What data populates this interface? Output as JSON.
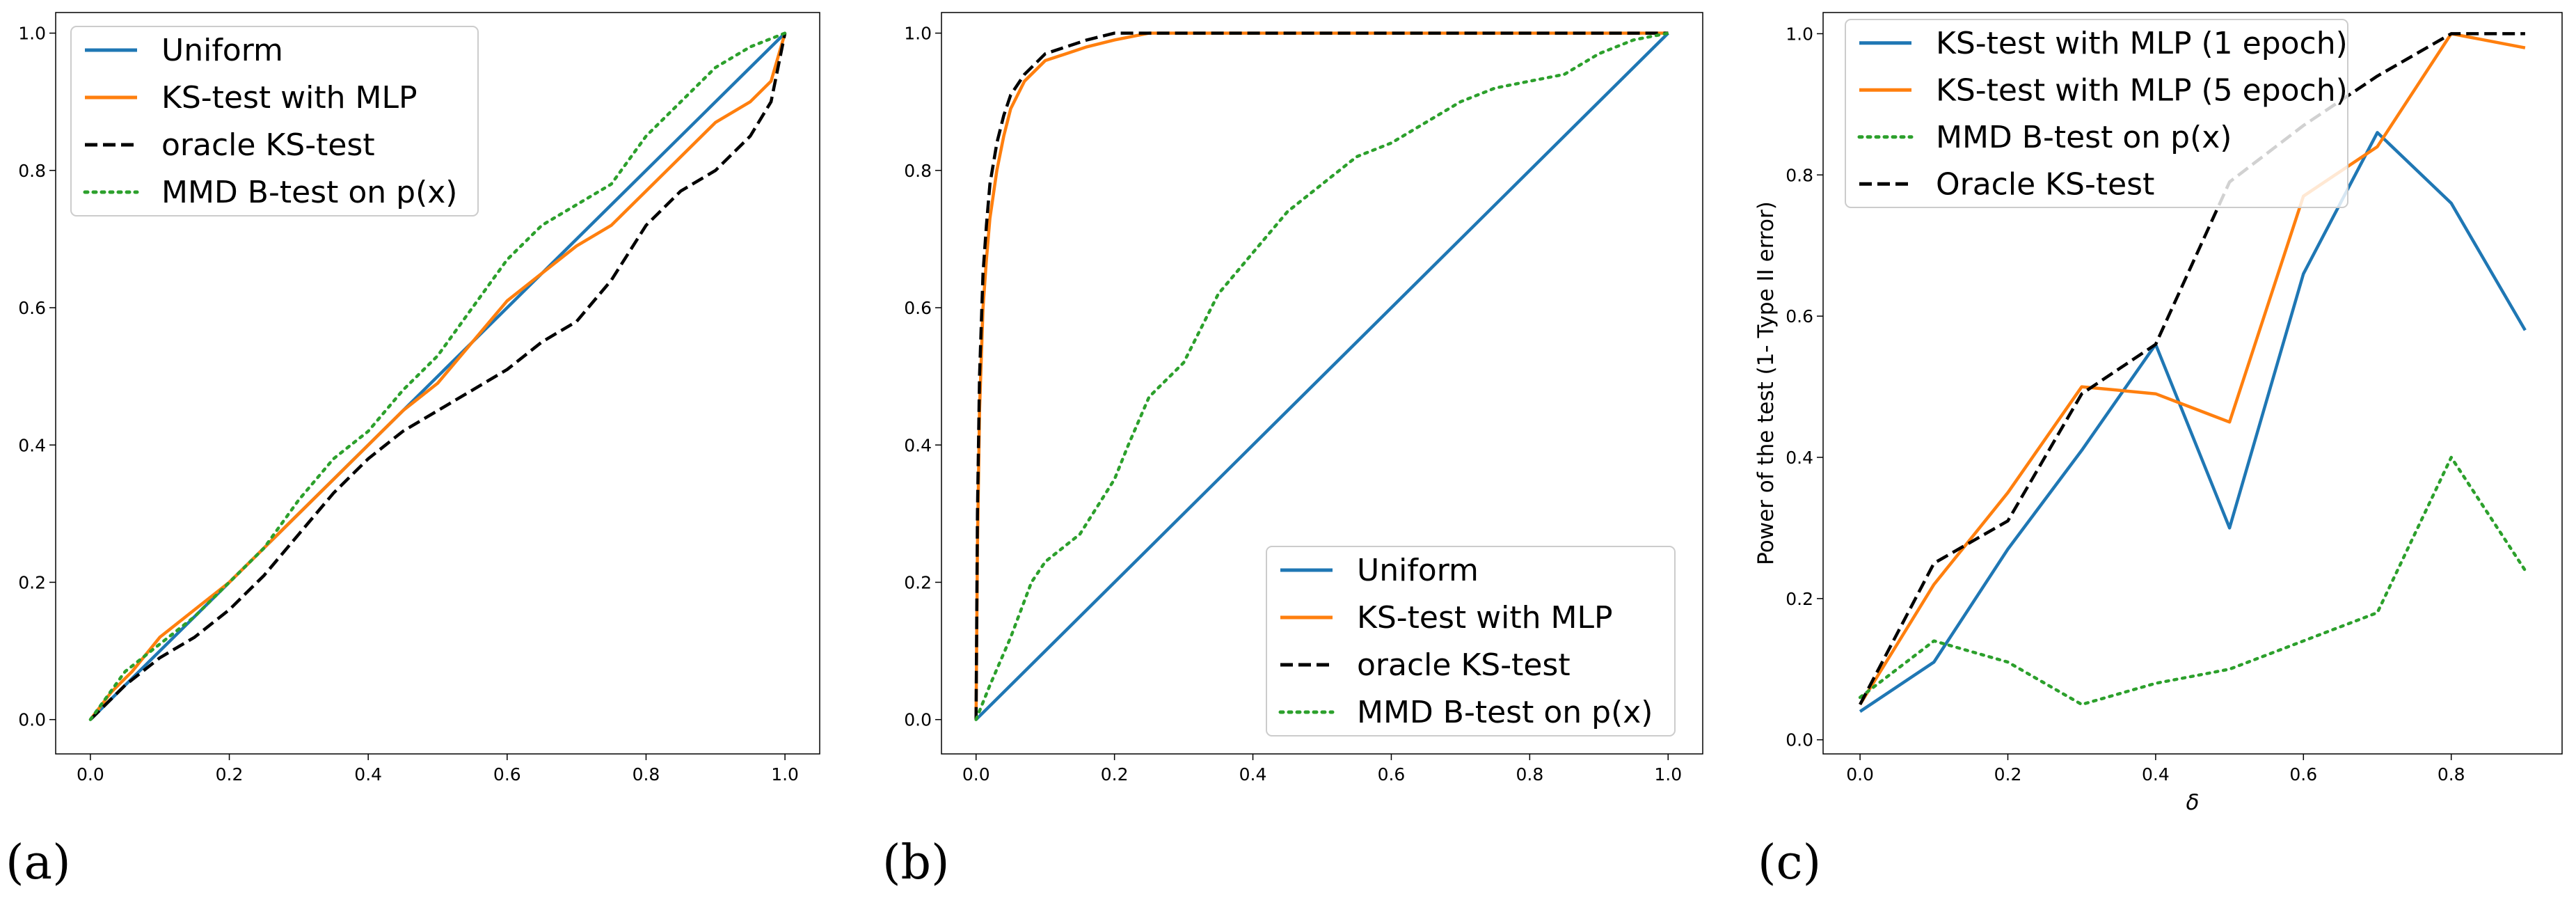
{
  "colors": {
    "blue": "#1f77b4",
    "orange": "#ff7f0e",
    "black": "#000000",
    "green": "#2ca02c"
  },
  "chart_data": [
    {
      "type": "line",
      "panel_label": "(a)",
      "xlim": [
        -0.05,
        1.05
      ],
      "ylim": [
        -0.05,
        1.03
      ],
      "xticks": [
        "0.0",
        "0.2",
        "0.4",
        "0.6",
        "0.8",
        "1.0"
      ],
      "yticks": [
        "0.0",
        "0.2",
        "0.4",
        "0.6",
        "0.8",
        "1.0"
      ],
      "xlabel": "",
      "ylabel": "",
      "legend_position": "upper-left",
      "series": [
        {
          "name": "Uniform",
          "color": "#1f77b4",
          "style": "solid",
          "x": [
            0,
            1
          ],
          "y": [
            0,
            1
          ]
        },
        {
          "name": "KS-test with MLP",
          "color": "#ff7f0e",
          "style": "solid",
          "x": [
            0,
            0.03,
            0.06,
            0.1,
            0.15,
            0.2,
            0.25,
            0.3,
            0.35,
            0.4,
            0.45,
            0.5,
            0.55,
            0.6,
            0.65,
            0.7,
            0.75,
            0.8,
            0.85,
            0.9,
            0.95,
            0.98,
            1.0
          ],
          "y": [
            0,
            0.04,
            0.07,
            0.12,
            0.16,
            0.2,
            0.25,
            0.3,
            0.35,
            0.4,
            0.45,
            0.49,
            0.55,
            0.61,
            0.65,
            0.69,
            0.72,
            0.77,
            0.82,
            0.87,
            0.9,
            0.93,
            1.0
          ]
        },
        {
          "name": "oracle KS-test",
          "color": "#000000",
          "style": "dashed",
          "x": [
            0,
            0.05,
            0.1,
            0.15,
            0.2,
            0.25,
            0.3,
            0.35,
            0.4,
            0.45,
            0.5,
            0.55,
            0.6,
            0.65,
            0.7,
            0.75,
            0.8,
            0.85,
            0.9,
            0.95,
            0.98,
            1.0
          ],
          "y": [
            0,
            0.05,
            0.09,
            0.12,
            0.16,
            0.21,
            0.27,
            0.33,
            0.38,
            0.42,
            0.45,
            0.48,
            0.51,
            0.55,
            0.58,
            0.64,
            0.72,
            0.77,
            0.8,
            0.85,
            0.9,
            1.0
          ]
        },
        {
          "name": "MMD B-test on p(x)",
          "color": "#2ca02c",
          "style": "dotted",
          "x": [
            0,
            0.05,
            0.1,
            0.15,
            0.2,
            0.25,
            0.3,
            0.35,
            0.4,
            0.45,
            0.5,
            0.55,
            0.6,
            0.65,
            0.7,
            0.75,
            0.8,
            0.85,
            0.9,
            0.95,
            1.0
          ],
          "y": [
            0,
            0.07,
            0.11,
            0.15,
            0.2,
            0.25,
            0.32,
            0.38,
            0.42,
            0.48,
            0.53,
            0.6,
            0.67,
            0.72,
            0.75,
            0.78,
            0.85,
            0.9,
            0.95,
            0.98,
            1.0
          ]
        }
      ]
    },
    {
      "type": "line",
      "panel_label": "(b)",
      "xlim": [
        -0.05,
        1.05
      ],
      "ylim": [
        -0.05,
        1.03
      ],
      "xticks": [
        "0.0",
        "0.2",
        "0.4",
        "0.6",
        "0.8",
        "1.0"
      ],
      "yticks": [
        "0.0",
        "0.2",
        "0.4",
        "0.6",
        "0.8",
        "1.0"
      ],
      "xlabel": "",
      "ylabel": "",
      "legend_position": "lower-right",
      "series": [
        {
          "name": "Uniform",
          "color": "#1f77b4",
          "style": "solid",
          "x": [
            0,
            1
          ],
          "y": [
            0,
            1
          ]
        },
        {
          "name": "KS-test with MLP",
          "color": "#ff7f0e",
          "style": "solid",
          "x": [
            0,
            0.002,
            0.005,
            0.01,
            0.015,
            0.02,
            0.03,
            0.04,
            0.05,
            0.07,
            0.1,
            0.13,
            0.16,
            0.2,
            0.25,
            0.3,
            0.5,
            1.0
          ],
          "y": [
            0,
            0.25,
            0.45,
            0.6,
            0.67,
            0.73,
            0.8,
            0.85,
            0.89,
            0.93,
            0.96,
            0.97,
            0.98,
            0.99,
            1.0,
            1.0,
            1.0,
            1.0
          ]
        },
        {
          "name": "oracle KS-test",
          "color": "#000000",
          "style": "dashed",
          "x": [
            0,
            0.002,
            0.005,
            0.01,
            0.015,
            0.02,
            0.03,
            0.04,
            0.05,
            0.07,
            0.1,
            0.13,
            0.16,
            0.2,
            0.25,
            0.3,
            0.5,
            1.0
          ],
          "y": [
            0,
            0.3,
            0.5,
            0.65,
            0.72,
            0.78,
            0.84,
            0.88,
            0.91,
            0.94,
            0.97,
            0.98,
            0.99,
            1.0,
            1.0,
            1.0,
            1.0,
            1.0
          ]
        },
        {
          "name": "MMD B-test on p(x)",
          "color": "#2ca02c",
          "style": "dotted",
          "x": [
            0,
            0.02,
            0.05,
            0.08,
            0.1,
            0.15,
            0.2,
            0.22,
            0.25,
            0.3,
            0.35,
            0.4,
            0.45,
            0.5,
            0.55,
            0.6,
            0.65,
            0.7,
            0.75,
            0.8,
            0.85,
            0.9,
            0.95,
            1.0
          ],
          "y": [
            0,
            0.05,
            0.12,
            0.2,
            0.23,
            0.27,
            0.35,
            0.4,
            0.47,
            0.52,
            0.62,
            0.68,
            0.74,
            0.78,
            0.82,
            0.84,
            0.87,
            0.9,
            0.92,
            0.93,
            0.94,
            0.97,
            0.99,
            1.0
          ]
        }
      ]
    },
    {
      "type": "line",
      "panel_label": "(c)",
      "xlim": [
        -0.05,
        0.95
      ],
      "ylim": [
        -0.02,
        1.03
      ],
      "xticks": [
        "0.0",
        "0.2",
        "0.4",
        "0.6",
        "0.8"
      ],
      "yticks": [
        "0.0",
        "0.2",
        "0.4",
        "0.6",
        "0.8",
        "1.0"
      ],
      "xlabel": "δ",
      "ylabel": "Power of the test (1- Type II error)",
      "legend_position": "upper-left",
      "series": [
        {
          "name": "KS-test with MLP (1 epoch)",
          "color": "#1f77b4",
          "style": "solid",
          "x": [
            0.0,
            0.1,
            0.2,
            0.3,
            0.4,
            0.5,
            0.6,
            0.7,
            0.8,
            0.9
          ],
          "y": [
            0.04,
            0.11,
            0.27,
            0.41,
            0.56,
            0.3,
            0.66,
            0.86,
            0.76,
            0.58
          ]
        },
        {
          "name": "KS-test with MLP (5 epoch)",
          "color": "#ff7f0e",
          "style": "solid",
          "x": [
            0.0,
            0.1,
            0.2,
            0.3,
            0.4,
            0.5,
            0.6,
            0.7,
            0.8,
            0.9
          ],
          "y": [
            0.05,
            0.22,
            0.35,
            0.5,
            0.49,
            0.45,
            0.77,
            0.84,
            1.0,
            0.98
          ]
        },
        {
          "name": "MMD B-test on p(x)",
          "color": "#2ca02c",
          "style": "dotted",
          "x": [
            0.0,
            0.1,
            0.2,
            0.3,
            0.4,
            0.5,
            0.6,
            0.7,
            0.8,
            0.9
          ],
          "y": [
            0.06,
            0.14,
            0.11,
            0.05,
            0.08,
            0.1,
            0.14,
            0.18,
            0.4,
            0.24
          ]
        },
        {
          "name": "Oracle KS-test",
          "color": "#000000",
          "style": "dashed",
          "x": [
            0.0,
            0.1,
            0.2,
            0.3,
            0.4,
            0.5,
            0.6,
            0.7,
            0.8,
            0.9
          ],
          "y": [
            0.05,
            0.25,
            0.31,
            0.49,
            0.56,
            0.79,
            0.87,
            0.94,
            1.0,
            1.0
          ]
        }
      ]
    }
  ]
}
